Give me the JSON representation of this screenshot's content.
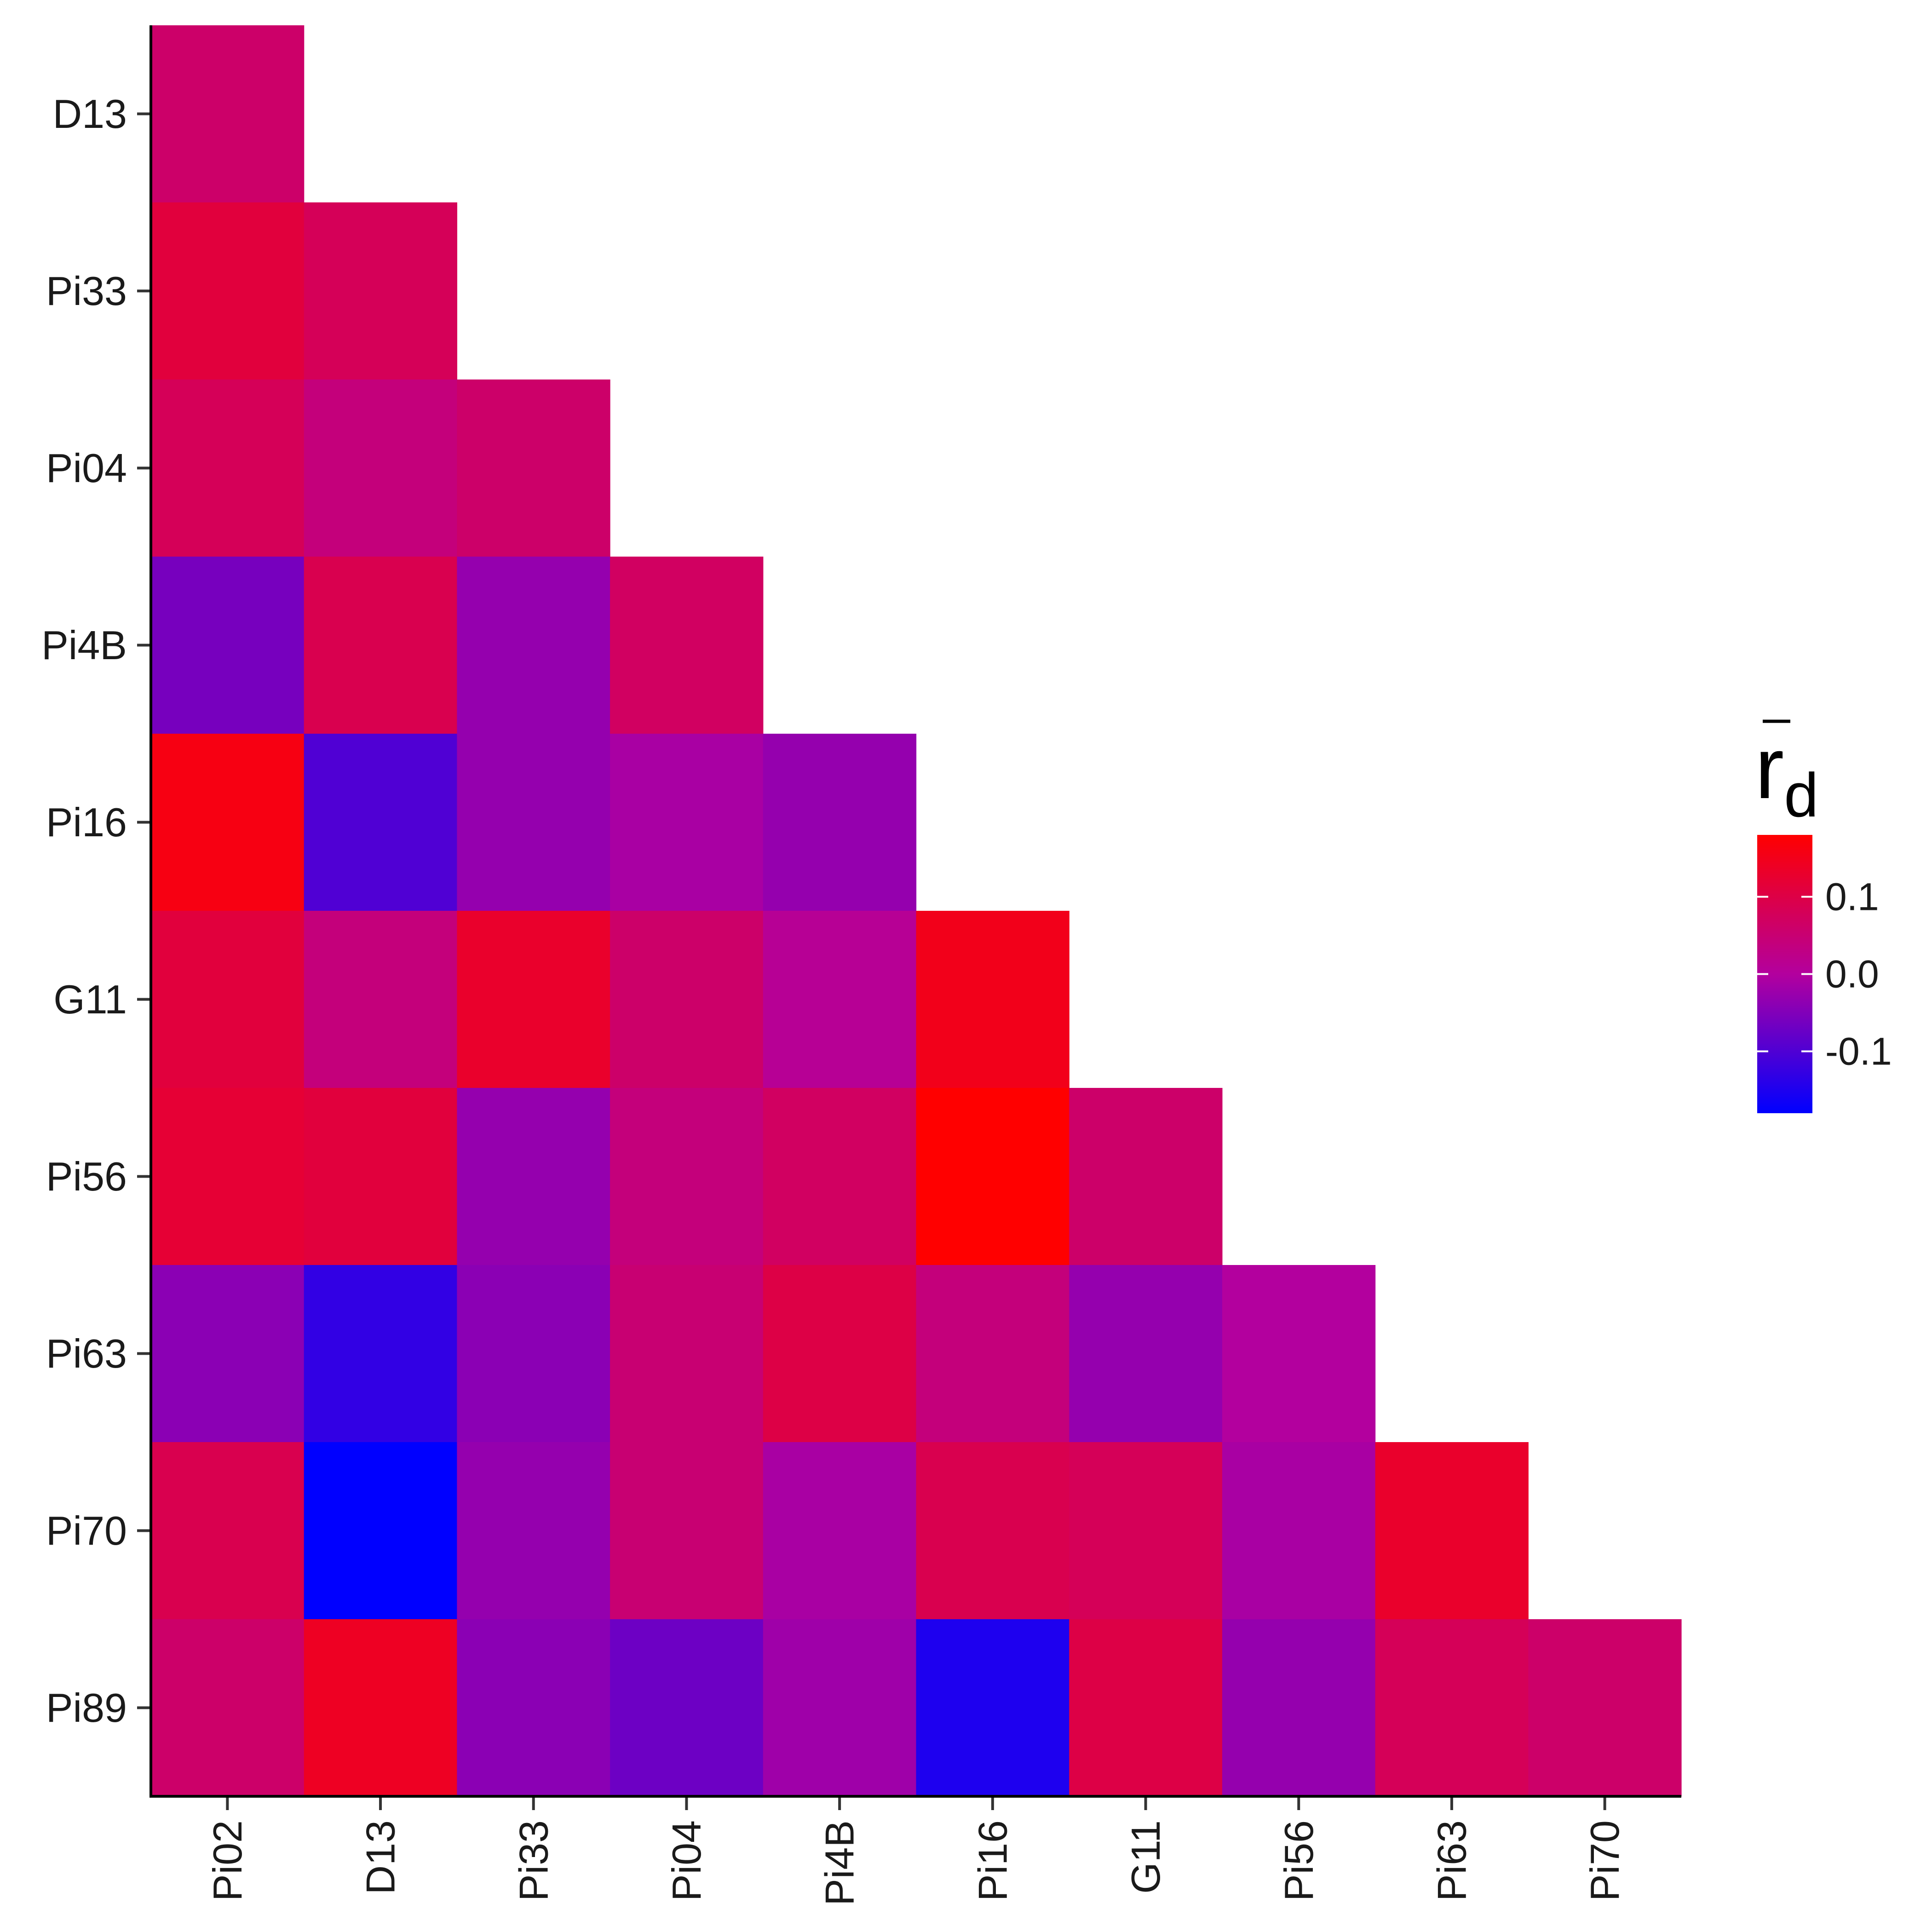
{
  "chart_data": {
    "type": "heatmap",
    "x_categories": [
      "Pi02",
      "D13",
      "Pi33",
      "Pi04",
      "Pi4B",
      "Pi16",
      "G11",
      "Pi56",
      "Pi63",
      "Pi70"
    ],
    "y_categories": [
      "D13",
      "Pi33",
      "Pi04",
      "Pi4B",
      "Pi16",
      "G11",
      "Pi56",
      "Pi63",
      "Pi70",
      "Pi89"
    ],
    "values": [
      [
        0.06,
        null,
        null,
        null,
        null,
        null,
        null,
        null,
        null,
        null
      ],
      [
        0.11,
        0.08,
        null,
        null,
        null,
        null,
        null,
        null,
        null,
        null
      ],
      [
        0.08,
        0.04,
        0.06,
        null,
        null,
        null,
        null,
        null,
        null,
        null
      ],
      [
        -0.06,
        0.09,
        -0.03,
        0.07,
        null,
        null,
        null,
        null,
        null,
        null
      ],
      [
        0.16,
        -0.1,
        -0.03,
        -0.01,
        -0.03,
        null,
        null,
        null,
        null,
        null
      ],
      [
        0.11,
        0.04,
        0.13,
        0.06,
        0.01,
        0.15,
        null,
        null,
        null,
        null
      ],
      [
        0.12,
        0.11,
        -0.03,
        0.04,
        0.07,
        0.18,
        0.06,
        null,
        null,
        null
      ],
      [
        -0.04,
        -0.13,
        -0.04,
        0.05,
        0.1,
        0.04,
        -0.03,
        0.0,
        null,
        null
      ],
      [
        0.09,
        -0.18,
        -0.03,
        0.05,
        -0.01,
        0.09,
        0.08,
        -0.01,
        0.13,
        null
      ],
      [
        0.06,
        0.14,
        -0.04,
        -0.07,
        -0.02,
        -0.15,
        0.1,
        -0.03,
        0.08,
        0.06
      ]
    ],
    "color_scale": {
      "low": "#0000ff",
      "mid": "#b3009e",
      "high": "#ff0000",
      "domain": [
        -0.18,
        0.18
      ],
      "breaks": [
        0.1,
        0.0,
        -0.1
      ],
      "break_labels": [
        "0.1",
        "0.0",
        "-0.1"
      ]
    },
    "legend": {
      "title_main": "r",
      "title_sub": "d",
      "position": "right"
    }
  }
}
